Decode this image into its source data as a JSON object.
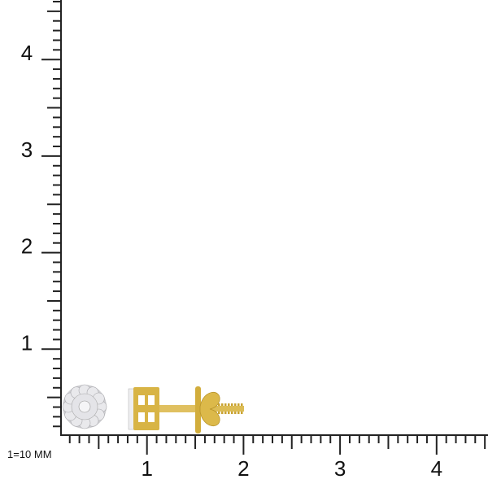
{
  "scale_note": "1=10 MM",
  "x_axis": {
    "labels": [
      "1",
      "2",
      "3",
      "4"
    ],
    "max": 4.5,
    "minor_step": 0.1
  },
  "y_axis": {
    "labels": [
      "1",
      "2",
      "3",
      "4"
    ],
    "max": 4.6,
    "minor_step": 0.1
  },
  "product": {
    "view_front": "flower-cluster-diamond-earring-front",
    "view_side": "stud-earring-with-screw-back-side",
    "metal_color": "#d8b445",
    "stone_color": "#e8e8ea"
  },
  "colors": {
    "axis": "#222222"
  }
}
